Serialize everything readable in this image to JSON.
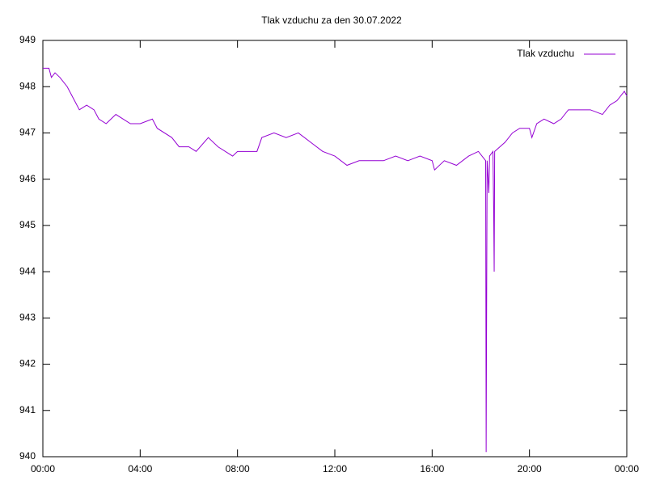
{
  "chart_data": {
    "type": "line",
    "title": "Tlak vzduchu za den 30.07.2022",
    "xlim": [
      0,
      24
    ],
    "ylim": [
      940,
      949
    ],
    "xticks": [
      {
        "value": 0,
        "label": "00:00"
      },
      {
        "value": 4,
        "label": "04:00"
      },
      {
        "value": 8,
        "label": "08:00"
      },
      {
        "value": 12,
        "label": "12:00"
      },
      {
        "value": 16,
        "label": "16:00"
      },
      {
        "value": 20,
        "label": "20:00"
      },
      {
        "value": 24,
        "label": "00:00"
      }
    ],
    "yticks": [
      940,
      941,
      942,
      943,
      944,
      945,
      946,
      947,
      948,
      949
    ],
    "legend": "top-right",
    "x": [
      0,
      0.25,
      0.35,
      0.5,
      0.7,
      1.0,
      1.3,
      1.5,
      1.8,
      2.1,
      2.3,
      2.6,
      3.0,
      3.3,
      3.6,
      4.0,
      4.5,
      4.7,
      5.3,
      5.6,
      6.0,
      6.3,
      6.8,
      7.2,
      7.8,
      8.0,
      8.8,
      9.0,
      9.5,
      10.0,
      10.5,
      11.0,
      11.5,
      12.0,
      12.5,
      13.0,
      14.0,
      14.5,
      15.0,
      15.5,
      16.0,
      16.1,
      16.5,
      17.0,
      17.5,
      17.9,
      18.2,
      18.22,
      18.24,
      18.26,
      18.33,
      18.36,
      18.5,
      18.53,
      18.55,
      18.57,
      19.0,
      19.3,
      19.6,
      20.0,
      20.1,
      20.3,
      20.6,
      21.0,
      21.3,
      21.6,
      22.0,
      22.5,
      23.0,
      23.3,
      23.6,
      23.9,
      24.0
    ],
    "series": [
      {
        "name": "Tlak vzduchu",
        "color": "#9400d3",
        "values": [
          948.4,
          948.4,
          948.2,
          948.3,
          948.2,
          948.0,
          947.7,
          947.5,
          947.6,
          947.5,
          947.3,
          947.2,
          947.4,
          947.3,
          947.2,
          947.2,
          947.3,
          947.1,
          946.9,
          946.7,
          946.7,
          946.6,
          946.9,
          946.7,
          946.5,
          946.6,
          946.6,
          946.9,
          947.0,
          946.9,
          947.0,
          946.8,
          946.6,
          946.5,
          946.3,
          946.4,
          946.4,
          946.5,
          946.4,
          946.5,
          946.4,
          946.2,
          946.4,
          946.3,
          946.5,
          946.6,
          946.4,
          940.1,
          943.3,
          946.4,
          945.7,
          946.5,
          946.6,
          945.3,
          944.0,
          946.6,
          946.8,
          947.0,
          947.1,
          947.1,
          946.9,
          947.2,
          947.3,
          947.2,
          947.3,
          947.5,
          947.5,
          947.5,
          947.4,
          947.6,
          947.7,
          947.9,
          947.8
        ]
      }
    ]
  }
}
